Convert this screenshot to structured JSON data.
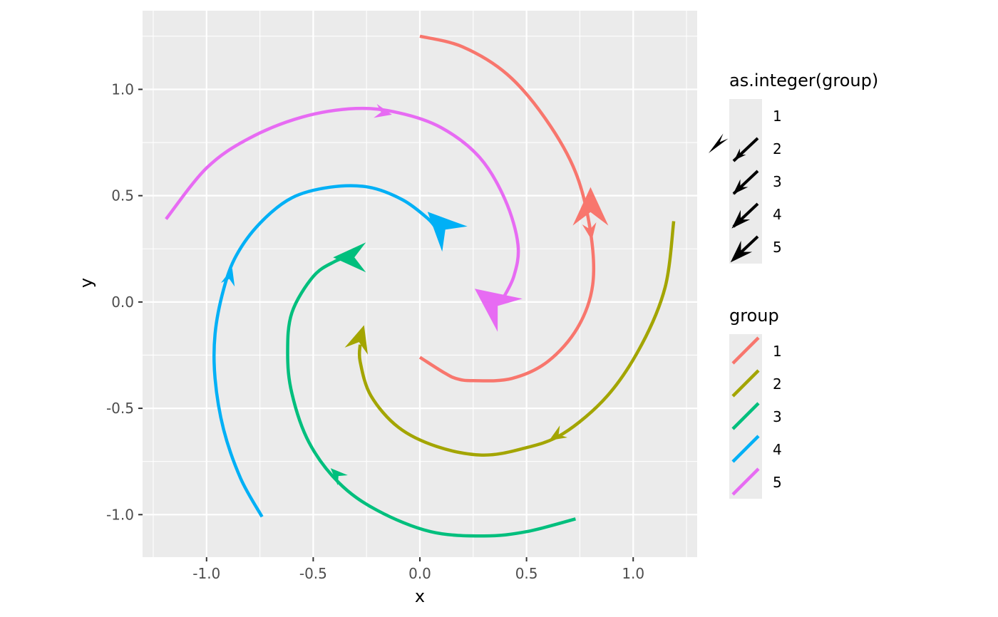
{
  "chart_data": {
    "type": "line",
    "xlabel": "x",
    "ylabel": "y",
    "xlim": [
      -1.3,
      1.3
    ],
    "ylim": [
      -1.2,
      1.37
    ],
    "x_ticks": [
      -1.0,
      -0.5,
      0.0,
      0.5,
      1.0
    ],
    "x_tick_labels": [
      "-1.0",
      "-0.5",
      "0.0",
      "0.5",
      "1.0"
    ],
    "y_ticks": [
      -1.0,
      -0.5,
      0.0,
      0.5,
      1.0
    ],
    "y_tick_labels": [
      "-1.0",
      "-0.5",
      "0.0",
      "0.5",
      "1.0"
    ],
    "grid": true,
    "background": "#ebebeb",
    "series": [
      {
        "name": "1",
        "color": "#f8766d",
        "points": [
          [
            0.0,
            1.25
          ],
          [
            0.2,
            1.2
          ],
          [
            0.41,
            1.07
          ],
          [
            0.59,
            0.86
          ],
          [
            0.73,
            0.61
          ],
          [
            0.8,
            0.33
          ],
          [
            0.81,
            0.08
          ],
          [
            0.74,
            -0.12
          ],
          [
            0.6,
            -0.28
          ],
          [
            0.43,
            -0.36
          ],
          [
            0.25,
            -0.37
          ],
          [
            0.17,
            -0.36
          ],
          [
            0.11,
            -0.33
          ],
          [
            0.0,
            -0.26
          ]
        ],
        "arrows": [
          [
            0.8,
            0.33
          ]
        ]
      },
      {
        "name": "2",
        "color": "#a3a500",
        "points": [
          [
            1.19,
            0.38
          ],
          [
            1.15,
            0.07
          ],
          [
            1.04,
            -0.2
          ],
          [
            0.88,
            -0.44
          ],
          [
            0.67,
            -0.62
          ],
          [
            0.48,
            -0.69
          ],
          [
            0.29,
            -0.72
          ],
          [
            0.08,
            -0.68
          ],
          [
            -0.1,
            -0.59
          ],
          [
            -0.23,
            -0.44
          ],
          [
            -0.28,
            -0.28
          ],
          [
            -0.28,
            -0.2
          ]
        ],
        "arrows": [
          [
            0.64,
            -0.63
          ]
        ]
      },
      {
        "name": "3",
        "color": "#00bf7d",
        "points": [
          [
            0.73,
            -1.02
          ],
          [
            0.5,
            -1.08
          ],
          [
            0.3,
            -1.1
          ],
          [
            0.05,
            -1.08
          ],
          [
            -0.2,
            -0.98
          ],
          [
            -0.38,
            -0.85
          ],
          [
            -0.52,
            -0.66
          ],
          [
            -0.6,
            -0.43
          ],
          [
            -0.62,
            -0.24
          ],
          [
            -0.6,
            -0.05
          ],
          [
            -0.5,
            0.12
          ],
          [
            -0.4,
            0.19
          ],
          [
            -0.32,
            0.22
          ]
        ],
        "arrows": [
          [
            -0.39,
            -0.81
          ]
        ]
      },
      {
        "name": "4",
        "color": "#00b0f6",
        "points": [
          [
            -0.74,
            -1.01
          ],
          [
            -0.84,
            -0.83
          ],
          [
            -0.92,
            -0.6
          ],
          [
            -0.96,
            -0.36
          ],
          [
            -0.96,
            -0.15
          ],
          [
            -0.92,
            0.06
          ],
          [
            -0.86,
            0.22
          ],
          [
            -0.75,
            0.37
          ],
          [
            -0.6,
            0.49
          ],
          [
            -0.42,
            0.54
          ],
          [
            -0.24,
            0.54
          ],
          [
            -0.08,
            0.48
          ],
          [
            0.04,
            0.39
          ],
          [
            0.08,
            0.34
          ]
        ],
        "arrows": [
          [
            -0.89,
            0.12
          ]
        ]
      },
      {
        "name": "5",
        "color": "#e76bf3",
        "points": [
          [
            -1.19,
            0.39
          ],
          [
            -1.0,
            0.63
          ],
          [
            -0.8,
            0.77
          ],
          [
            -0.55,
            0.87
          ],
          [
            -0.3,
            0.91
          ],
          [
            -0.1,
            0.89
          ],
          [
            0.1,
            0.82
          ],
          [
            0.28,
            0.68
          ],
          [
            0.4,
            0.48
          ],
          [
            0.46,
            0.27
          ],
          [
            0.44,
            0.12
          ],
          [
            0.38,
            0.0
          ]
        ],
        "arrows": [
          [
            -0.17,
            0.89
          ]
        ]
      }
    ],
    "end_arrows": [
      {
        "group": "1",
        "at": [
          0.8,
          0.45
        ],
        "dir": [
          0.0,
          1.0
        ],
        "size": 4
      },
      {
        "group": "2",
        "at": [
          -0.28,
          -0.17
        ],
        "dir": [
          0.3,
          1.0
        ],
        "size": 2
      },
      {
        "group": "3",
        "at": [
          -0.33,
          0.21
        ],
        "dir": [
          -1.0,
          0.0
        ],
        "size": 3
      },
      {
        "group": "4",
        "at": [
          0.1,
          0.36
        ],
        "dir": [
          -0.7,
          0.7
        ],
        "size": 4
      },
      {
        "group": "5",
        "at": [
          0.34,
          0.0
        ],
        "dir": [
          -0.8,
          0.6
        ],
        "size": 5
      }
    ],
    "legend_position": "right"
  },
  "legend": {
    "shape_title": "as.integer(group)",
    "shape_items": [
      "1",
      "2",
      "3",
      "4",
      "5"
    ],
    "color_title": "group",
    "color_items": [
      {
        "label": "1",
        "color": "#f8766d"
      },
      {
        "label": "2",
        "color": "#a3a500"
      },
      {
        "label": "3",
        "color": "#00bf7d"
      },
      {
        "label": "4",
        "color": "#00b0f6"
      },
      {
        "label": "5",
        "color": "#e76bf3"
      }
    ]
  }
}
